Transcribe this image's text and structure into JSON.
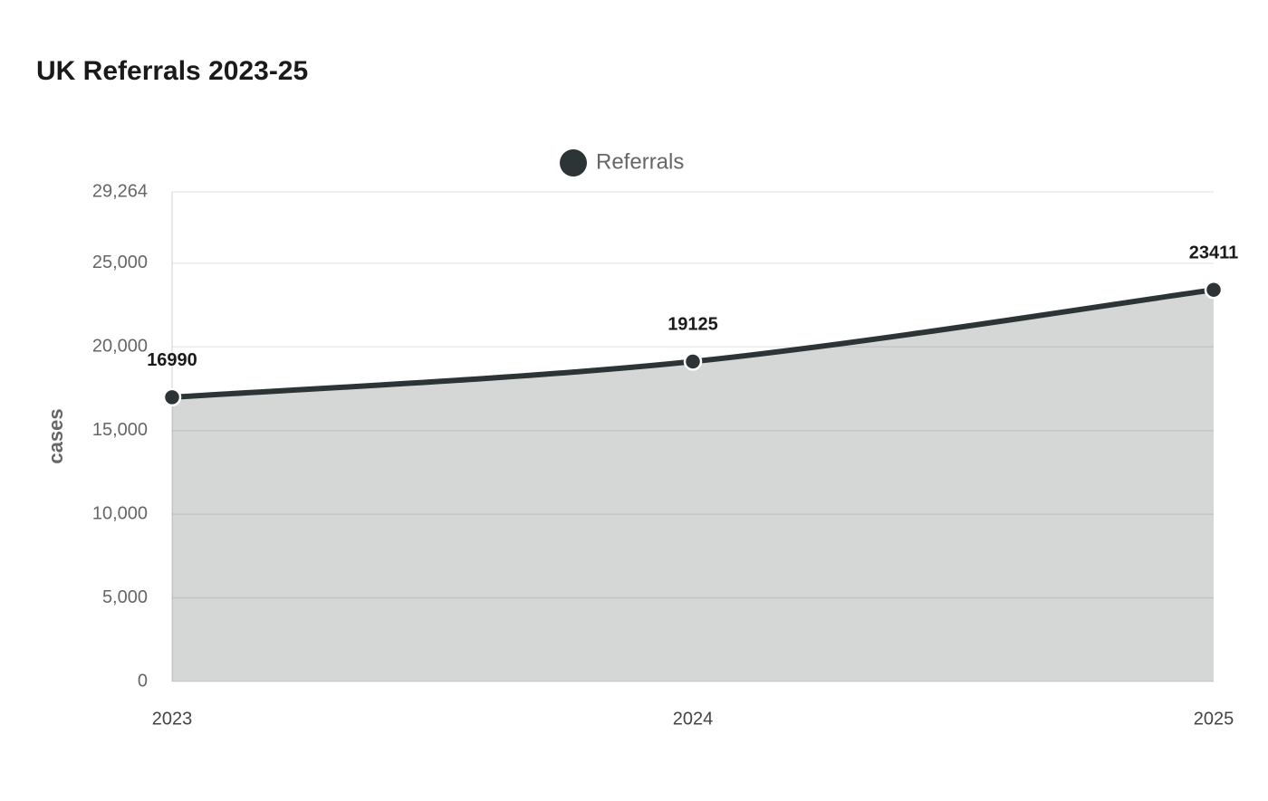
{
  "chart_data": {
    "type": "area",
    "title": "UK Referrals 2023-25",
    "categories": [
      "2023",
      "2024",
      "2025"
    ],
    "series": [
      {
        "name": "Referrals",
        "color": "#2d3436",
        "values": [
          16990,
          19125,
          23411
        ]
      }
    ],
    "y_label": "cases",
    "ylim": [
      0,
      29264
    ],
    "yticks": [
      0,
      {
        "value": 5000,
        "label": "5,000"
      },
      {
        "value": 10000,
        "label": "10,000"
      },
      {
        "value": 15000,
        "label": "15,000"
      },
      {
        "value": 20000,
        "label": "20,000"
      },
      {
        "value": 25000,
        "label": "25,000"
      },
      {
        "value": 29264,
        "label": "29,264"
      }
    ],
    "grid": true,
    "legend": "top"
  }
}
